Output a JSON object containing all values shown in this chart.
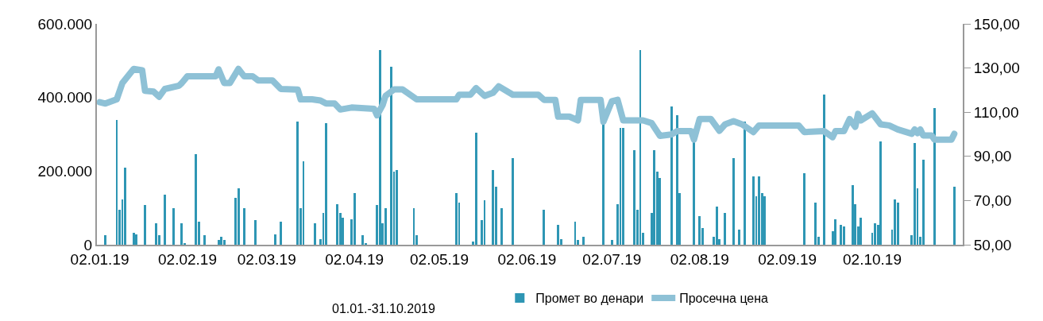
{
  "chart_data": {
    "type": "bar",
    "annotations": [
      "01.01.-31.10.2019"
    ],
    "legend": "bottom",
    "xlim": [
      "2019-01-01",
      "2019-11-03"
    ],
    "xticks": [
      {
        "value": "2019-01-02",
        "label": "02.01.19"
      },
      {
        "value": "2019-02-02",
        "label": "02.02.19"
      },
      {
        "value": "2019-03-02",
        "label": "02.03.19"
      },
      {
        "value": "2019-04-02",
        "label": "02.04.19"
      },
      {
        "value": "2019-05-02",
        "label": "02.05.19"
      },
      {
        "value": "2019-06-02",
        "label": "02.06.19"
      },
      {
        "value": "2019-07-02",
        "label": "02.07.19"
      },
      {
        "value": "2019-08-02",
        "label": "02.08.19"
      },
      {
        "value": "2019-09-02",
        "label": "02.09.19"
      },
      {
        "value": "2019-10-02",
        "label": "02.10.19"
      }
    ],
    "ylim": [
      0,
      600000
    ],
    "yticks": [
      {
        "value": 0,
        "label": "0"
      },
      {
        "value": 200000,
        "label": "200.000"
      },
      {
        "value": 400000,
        "label": "400.000"
      },
      {
        "value": 600000,
        "label": "600.000"
      }
    ],
    "y2lim": [
      50,
      150
    ],
    "y2ticks": [
      {
        "value": 50,
        "label": "50,00"
      },
      {
        "value": 70,
        "label": "70,00"
      },
      {
        "value": 90,
        "label": "90,00"
      },
      {
        "value": 110,
        "label": "110,00"
      },
      {
        "value": 130,
        "label": "130,00"
      },
      {
        "value": 150,
        "label": "150,00"
      }
    ],
    "series": [
      {
        "name": "Промет во денари",
        "color": "#2e96b4",
        "x": [
          "2019-01-04",
          "2019-01-08",
          "2019-01-09",
          "2019-01-10",
          "2019-01-11",
          "2019-01-14",
          "2019-01-15",
          "2019-01-18",
          "2019-01-22",
          "2019-01-23",
          "2019-01-25",
          "2019-01-28",
          "2019-01-31",
          "2019-02-01",
          "2019-02-05",
          "2019-02-06",
          "2019-02-08",
          "2019-02-13",
          "2019-02-14",
          "2019-02-15",
          "2019-02-19",
          "2019-02-20",
          "2019-02-22",
          "2019-02-26",
          "2019-03-05",
          "2019-03-07",
          "2019-03-13",
          "2019-03-14",
          "2019-03-15",
          "2019-03-19",
          "2019-03-21",
          "2019-03-22",
          "2019-03-23",
          "2019-03-27",
          "2019-03-28",
          "2019-03-29",
          "2019-04-01",
          "2019-04-02",
          "2019-04-05",
          "2019-04-06",
          "2019-04-10",
          "2019-04-11",
          "2019-04-12",
          "2019-04-13",
          "2019-04-15",
          "2019-04-16",
          "2019-04-17",
          "2019-04-23",
          "2019-04-24",
          "2019-05-08",
          "2019-05-09",
          "2019-05-14",
          "2019-05-15",
          "2019-05-17",
          "2019-05-18",
          "2019-05-21",
          "2019-05-22",
          "2019-05-24",
          "2019-05-28",
          "2019-06-08",
          "2019-06-13",
          "2019-06-14",
          "2019-06-19",
          "2019-06-20",
          "2019-06-22",
          "2019-06-29",
          "2019-07-02",
          "2019-07-04",
          "2019-07-05",
          "2019-07-06",
          "2019-07-10",
          "2019-07-11",
          "2019-07-12",
          "2019-07-13",
          "2019-07-16",
          "2019-07-17",
          "2019-07-18",
          "2019-07-19",
          "2019-07-23",
          "2019-07-25",
          "2019-07-26",
          "2019-07-31",
          "2019-08-02",
          "2019-08-03",
          "2019-08-07",
          "2019-08-08",
          "2019-08-09",
          "2019-08-11",
          "2019-08-14",
          "2019-08-16",
          "2019-08-18",
          "2019-08-21",
          "2019-08-22",
          "2019-08-23",
          "2019-08-24",
          "2019-08-25",
          "2019-09-08",
          "2019-09-12",
          "2019-09-13",
          "2019-09-15",
          "2019-09-18",
          "2019-09-19",
          "2019-09-21",
          "2019-09-22",
          "2019-09-25",
          "2019-09-26",
          "2019-09-27",
          "2019-09-28",
          "2019-10-02",
          "2019-10-03",
          "2019-10-04",
          "2019-10-05",
          "2019-10-09",
          "2019-10-10",
          "2019-10-11",
          "2019-10-16",
          "2019-10-17",
          "2019-10-18",
          "2019-10-19",
          "2019-10-20",
          "2019-10-24",
          "2019-10-31"
        ],
        "values": [
          25000,
          338000,
          95000,
          124000,
          210000,
          33000,
          29000,
          107000,
          58000,
          25000,
          136000,
          99000,
          58000,
          3000,
          247000,
          62000,
          25000,
          12000,
          21000,
          12000,
          128000,
          153000,
          99000,
          66000,
          29000,
          62000,
          334000,
          99000,
          227000,
          58000,
          16000,
          87000,
          330000,
          111000,
          87000,
          74000,
          70000,
          140000,
          25000,
          3000,
          107000,
          528000,
          58000,
          99000,
          483000,
          198000,
          202000,
          99000,
          25000,
          140000,
          115000,
          8000,
          305000,
          66000,
          120000,
          202000,
          157000,
          99000,
          235000,
          95000,
          54000,
          16000,
          62000,
          12000,
          21000,
          330000,
          12000,
          111000,
          318000,
          318000,
          256000,
          95000,
          528000,
          33000,
          87000,
          256000,
          198000,
          181000,
          375000,
          351000,
          140000,
          280000,
          78000,
          45000,
          21000,
          103000,
          16000,
          87000,
          235000,
          41000,
          334000,
          186000,
          132000,
          186000,
          140000,
          132000,
          194000,
          115000,
          21000,
          408000,
          37000,
          70000,
          54000,
          50000,
          161000,
          111000,
          50000,
          74000,
          33000,
          58000,
          54000,
          280000,
          41000,
          124000,
          115000,
          25000,
          276000,
          153000,
          21000,
          231000,
          371000,
          157000
        ]
      },
      {
        "name": "Просечна цена",
        "type": "line",
        "axis": "y2",
        "color": "#8ec1d6",
        "line_style": "solid",
        "x": [
          "2019-01-02",
          "2019-01-04",
          "2019-01-08",
          "2019-01-10",
          "2019-01-14",
          "2019-01-17",
          "2019-01-18",
          "2019-01-21",
          "2019-01-23",
          "2019-01-25",
          "2019-01-30",
          "2019-01-31",
          "2019-02-02",
          "2019-02-12",
          "2019-02-13",
          "2019-02-15",
          "2019-02-17",
          "2019-02-20",
          "2019-02-22",
          "2019-02-25",
          "2019-02-27",
          "2019-03-04",
          "2019-03-07",
          "2019-03-13",
          "2019-03-14",
          "2019-03-18",
          "2019-03-21",
          "2019-03-23",
          "2019-03-26",
          "2019-03-28",
          "2019-04-01",
          "2019-04-09",
          "2019-04-10",
          "2019-04-12",
          "2019-04-13",
          "2019-04-16",
          "2019-04-19",
          "2019-04-24",
          "2019-05-08",
          "2019-05-09",
          "2019-05-13",
          "2019-05-15",
          "2019-05-18",
          "2019-05-21",
          "2019-05-23",
          "2019-05-28",
          "2019-06-06",
          "2019-06-08",
          "2019-06-12",
          "2019-06-13",
          "2019-06-17",
          "2019-06-20",
          "2019-06-21",
          "2019-06-28",
          "2019-06-29",
          "2019-07-02",
          "2019-07-04",
          "2019-07-06",
          "2019-07-13",
          "2019-07-16",
          "2019-07-19",
          "2019-07-23",
          "2019-07-25",
          "2019-07-30",
          "2019-07-31",
          "2019-08-02",
          "2019-08-06",
          "2019-08-09",
          "2019-08-11",
          "2019-08-14",
          "2019-08-17",
          "2019-08-21",
          "2019-08-23",
          "2019-09-06",
          "2019-09-08",
          "2019-09-15",
          "2019-09-18",
          "2019-09-19",
          "2019-09-22",
          "2019-09-24",
          "2019-09-26",
          "2019-09-27",
          "2019-09-28",
          "2019-10-02",
          "2019-10-05",
          "2019-10-08",
          "2019-10-11",
          "2019-10-16",
          "2019-10-17",
          "2019-10-18",
          "2019-10-19",
          "2019-10-20",
          "2019-10-23",
          "2019-10-24",
          "2019-10-30",
          "2019-10-31"
        ],
        "values": [
          114.5,
          113.9,
          115.8,
          123.2,
          129.6,
          129.0,
          119.7,
          119.3,
          117.0,
          120.5,
          122.0,
          123.2,
          126.3,
          126.3,
          129.4,
          123.2,
          123.2,
          129.6,
          126.3,
          126.3,
          124.4,
          124.4,
          120.5,
          120.2,
          115.8,
          115.8,
          115.3,
          113.9,
          113.9,
          111.2,
          112.1,
          111.5,
          108.6,
          113.3,
          117.4,
          120.3,
          120.3,
          115.8,
          115.8,
          117.9,
          117.9,
          120.9,
          117.4,
          118.8,
          121.7,
          117.9,
          117.9,
          115.6,
          115.6,
          108.0,
          108.0,
          106.3,
          115.6,
          115.6,
          105.7,
          115.0,
          115.6,
          106.3,
          106.3,
          105.1,
          99.3,
          99.9,
          101.4,
          101.4,
          97.6,
          106.9,
          106.9,
          101.6,
          104.5,
          105.9,
          104.5,
          101.0,
          104.0,
          104.0,
          101.0,
          101.4,
          98.7,
          101.4,
          101.4,
          106.9,
          103.4,
          109.2,
          106.3,
          109.5,
          104.5,
          104.0,
          102.2,
          100.2,
          102.2,
          100.5,
          102.2,
          99.5,
          99.5,
          97.6,
          97.6,
          100.2
        ]
      }
    ]
  }
}
